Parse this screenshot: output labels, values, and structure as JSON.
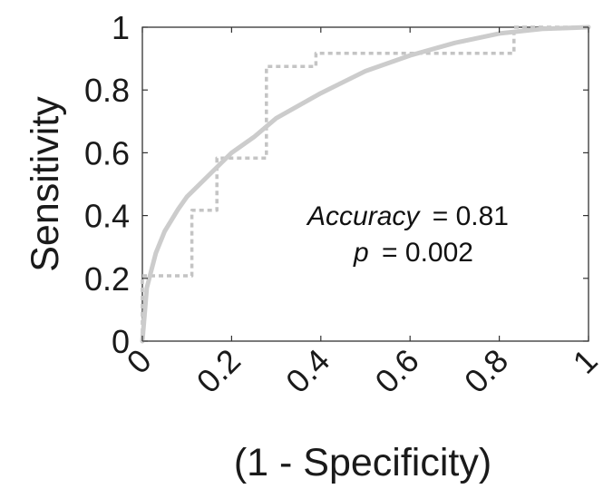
{
  "chart_data": {
    "type": "line",
    "xlabel": "(1 - Specificity)",
    "ylabel": "Sensitivity",
    "xlim": [
      0,
      1
    ],
    "ylim": [
      0,
      1
    ],
    "x_ticks": [
      0,
      0.2,
      0.4,
      0.6,
      0.8,
      1
    ],
    "y_ticks": [
      0,
      0.2,
      0.4,
      0.6,
      0.8,
      1
    ],
    "x_tick_labels": [
      "0",
      "0.2",
      "0.4",
      "0.6",
      "0.8",
      "1"
    ],
    "y_tick_labels": [
      "0",
      "0.2",
      "0.4",
      "0.6",
      "0.8",
      "1"
    ],
    "grid": false,
    "series": [
      {
        "style": "dotted-step",
        "color": "#c4c4c4",
        "x": [
          0,
          0,
          0.111,
          0.111,
          0.167,
          0.167,
          0.278,
          0.278,
          0.389,
          0.389,
          0.833,
          0.833,
          1
        ],
        "y": [
          0,
          0.208,
          0.208,
          0.417,
          0.417,
          0.583,
          0.583,
          0.875,
          0.875,
          0.917,
          0.917,
          1,
          1
        ]
      },
      {
        "style": "smooth-fit",
        "color": "#cccccc",
        "x": [
          0,
          0.01,
          0.03,
          0.05,
          0.08,
          0.1,
          0.15,
          0.2,
          0.25,
          0.3,
          0.4,
          0.5,
          0.6,
          0.7,
          0.8,
          0.9,
          1
        ],
        "y": [
          0,
          0.17,
          0.28,
          0.35,
          0.42,
          0.46,
          0.53,
          0.6,
          0.65,
          0.71,
          0.79,
          0.86,
          0.91,
          0.95,
          0.98,
          0.995,
          1
        ]
      }
    ],
    "annotation": {
      "accuracy_label": "Accuracy",
      "accuracy_value": "= 0.81",
      "p_label": "p",
      "p_value": "= 0.002"
    }
  }
}
